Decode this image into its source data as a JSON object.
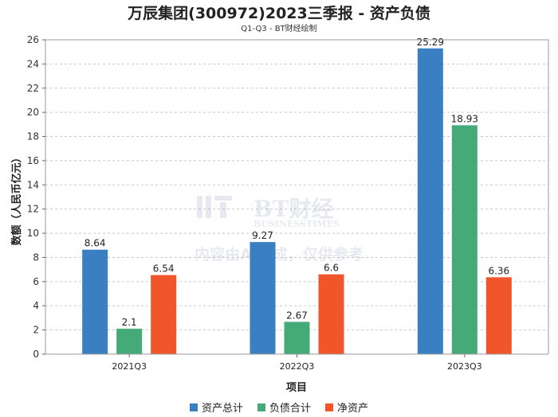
{
  "header": {
    "title": "万辰集团(300972)2023三季报 - 资产负债",
    "subtitle": "Q1-Q3 - BT财经绘制"
  },
  "watermark": {
    "logo_text": "BT财经",
    "logo_subtext": "BUSINESSTIMES",
    "notice": "内容由AI生成，仅供参考"
  },
  "chart_data": {
    "type": "bar",
    "categories": [
      "2021Q3",
      "2022Q3",
      "2023Q3"
    ],
    "series": [
      {
        "name": "资产总计",
        "color": "#3a7fc1",
        "values": [
          8.64,
          9.27,
          25.29
        ],
        "labels": [
          "8.64",
          "9.27",
          "25.29"
        ]
      },
      {
        "name": "负债合计",
        "color": "#43aa78",
        "values": [
          2.1,
          2.67,
          18.93
        ],
        "labels": [
          "2.1",
          "2.67",
          "18.93"
        ]
      },
      {
        "name": "净资产",
        "color": "#f0562a",
        "values": [
          6.54,
          6.6,
          6.36
        ],
        "labels": [
          "6.54",
          "6.6",
          "6.36"
        ]
      }
    ],
    "xlabel": "项目",
    "ylabel": "数额（人民币亿元）",
    "ylim": [
      0,
      26
    ],
    "yticks": [
      0,
      2,
      4,
      6,
      8,
      10,
      12,
      14,
      16,
      18,
      20,
      22,
      24,
      26
    ],
    "grid": true,
    "legend_position": "bottom"
  }
}
